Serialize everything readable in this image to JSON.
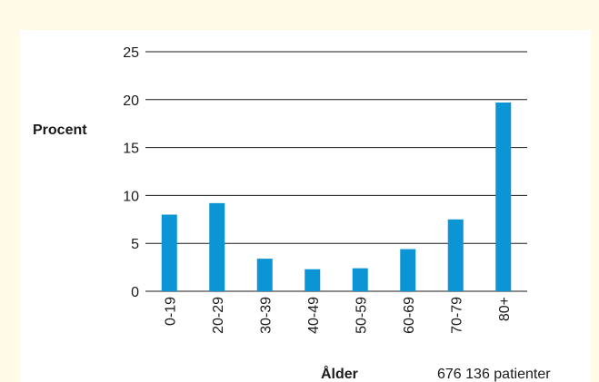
{
  "chart_data": {
    "type": "bar",
    "ylabel": "Procent",
    "xlabel": "Ålder",
    "note": "676 136 patienter",
    "categories": [
      "0-19",
      "20-29",
      "30-39",
      "40-49",
      "50-59",
      "60-69",
      "70-79",
      "80+"
    ],
    "values": [
      8.0,
      9.2,
      3.4,
      2.3,
      2.4,
      4.4,
      7.5,
      19.7
    ],
    "yticks": [
      0,
      5,
      10,
      15,
      20,
      25
    ],
    "ylim": [
      0,
      25
    ],
    "grid": true,
    "bar_color": "#0c95d4"
  }
}
